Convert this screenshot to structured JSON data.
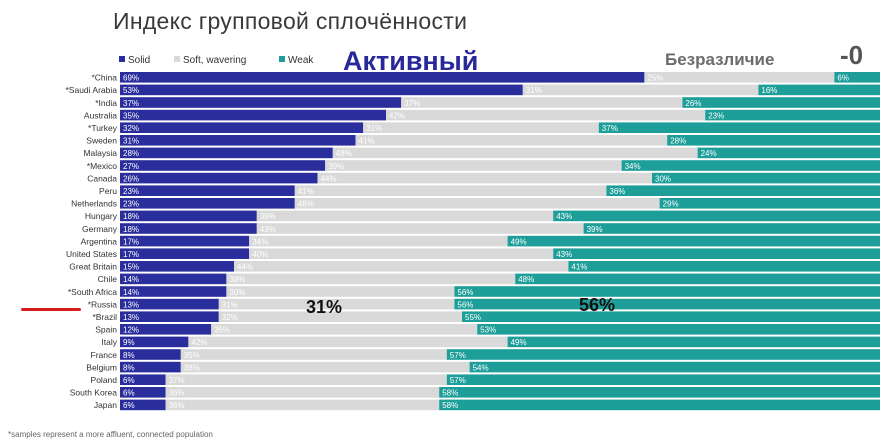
{
  "title": "Индекс групповой сплочённости",
  "annotations": {
    "active": "Активный",
    "indifference": "Безразличие",
    "zero": "-0",
    "russia_soft": "31%",
    "russia_weak": "56%"
  },
  "footnote": "*samples represent a more affluent, connected population",
  "colors": {
    "solid": "#2a2d9c",
    "soft": "#d9d9d9",
    "weak": "#1e9e99",
    "marker": "#d31c1c"
  },
  "chart_data": {
    "type": "bar",
    "orientation": "horizontal",
    "stacked": true,
    "legend_position": "top-left",
    "categories": [
      "*China",
      "*Saudi Arabia",
      "*India",
      "Australia",
      "*Turkey",
      "Sweden",
      "Malaysia",
      "*Mexico",
      "Canada",
      "Peru",
      "Netherlands",
      "Hungary",
      "Germany",
      "Argentina",
      "United States",
      "Great Britain",
      "Chile",
      "*South Africa",
      "*Russia",
      "*Brazil",
      "Spain",
      "Italy",
      "France",
      "Belgium",
      "Poland",
      "South Korea",
      "Japan"
    ],
    "series": [
      {
        "name": "Solid",
        "values": [
          69,
          53,
          37,
          35,
          32,
          31,
          28,
          27,
          26,
          23,
          23,
          18,
          18,
          17,
          17,
          15,
          14,
          14,
          13,
          13,
          12,
          9,
          8,
          8,
          6,
          6,
          6
        ]
      },
      {
        "name": "Soft, wavering",
        "values": [
          25,
          31,
          37,
          42,
          31,
          41,
          48,
          39,
          44,
          41,
          48,
          39,
          43,
          34,
          40,
          44,
          38,
          30,
          31,
          32,
          35,
          42,
          35,
          38,
          37,
          36,
          36
        ]
      },
      {
        "name": "Weak",
        "values": [
          6,
          16,
          26,
          23,
          37,
          28,
          24,
          34,
          30,
          36,
          29,
          43,
          39,
          49,
          43,
          41,
          48,
          56,
          56,
          55,
          53,
          49,
          57,
          54,
          57,
          58,
          58
        ]
      }
    ],
    "xlim": [
      0,
      100
    ]
  }
}
